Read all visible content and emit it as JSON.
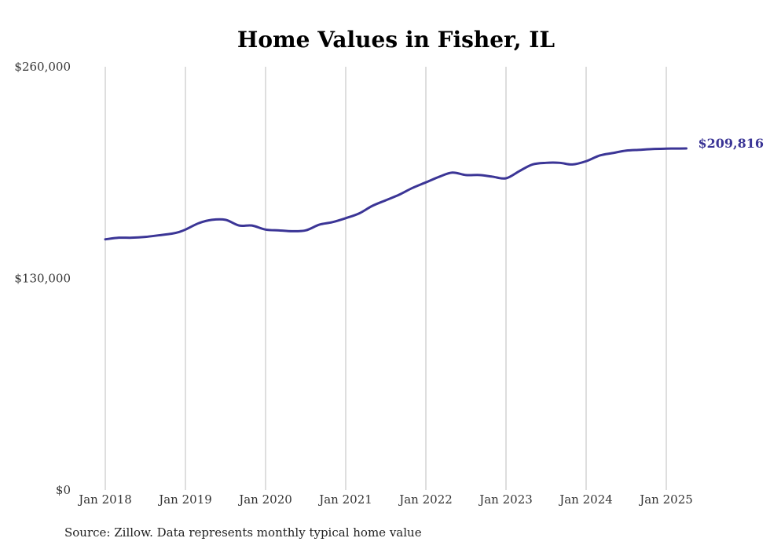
{
  "chart_data": {
    "type": "line",
    "title": "Home Values in Fisher, IL",
    "xlabel": "",
    "ylabel": "",
    "ylim": [
      0,
      260000
    ],
    "y_ticks": [
      {
        "value": 0,
        "label": "$0"
      },
      {
        "value": 130000,
        "label": "$130,000"
      },
      {
        "value": 260000,
        "label": "$260,000"
      }
    ],
    "x_ticks": [
      {
        "value": 2018,
        "label": "Jan 2018"
      },
      {
        "value": 2019,
        "label": "Jan 2019"
      },
      {
        "value": 2020,
        "label": "Jan 2020"
      },
      {
        "value": 2021,
        "label": "Jan 2021"
      },
      {
        "value": 2022,
        "label": "Jan 2022"
      },
      {
        "value": 2023,
        "label": "Jan 2023"
      },
      {
        "value": 2024,
        "label": "Jan 2024"
      },
      {
        "value": 2025,
        "label": "Jan 2025"
      }
    ],
    "xlim": [
      2018,
      2025.25
    ],
    "grid": {
      "vertical": true,
      "horizontal": false
    },
    "legend": "none",
    "series": [
      {
        "color": "#3b3596",
        "x": [
          2018.0,
          2018.17,
          2018.33,
          2018.5,
          2018.67,
          2018.83,
          2018.92,
          2019.0,
          2019.17,
          2019.33,
          2019.5,
          2019.67,
          2019.83,
          2020.0,
          2020.17,
          2020.33,
          2020.5,
          2020.67,
          2020.83,
          2021.0,
          2021.17,
          2021.33,
          2021.5,
          2021.67,
          2021.83,
          2022.0,
          2022.17,
          2022.33,
          2022.5,
          2022.67,
          2022.83,
          2023.0,
          2023.17,
          2023.33,
          2023.5,
          2023.67,
          2023.83,
          2024.0,
          2024.17,
          2024.33,
          2024.5,
          2024.67,
          2024.83,
          2025.0,
          2025.17,
          2025.25
        ],
        "values": [
          154000,
          155000,
          155000,
          155500,
          156500,
          157500,
          158500,
          160000,
          164000,
          166000,
          166000,
          162500,
          162500,
          160000,
          159500,
          159000,
          159500,
          163000,
          164500,
          167000,
          170000,
          174500,
          178000,
          181500,
          185500,
          189000,
          192500,
          195000,
          193500,
          193500,
          192500,
          191500,
          196000,
          200000,
          201000,
          201000,
          200000,
          202000,
          205500,
          207000,
          208500,
          209000,
          209500,
          209700,
          209800,
          209816
        ],
        "end_label": "$209,816"
      }
    ],
    "source": "Source: Zillow. Data represents monthly typical home value"
  }
}
